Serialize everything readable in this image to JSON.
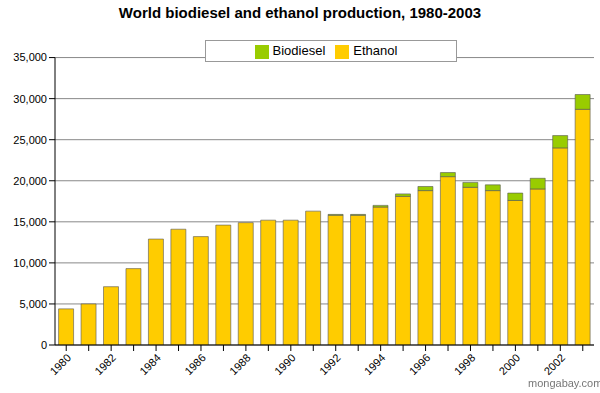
{
  "chart_data": {
    "type": "bar",
    "title": "World biodiesel and ethanol production, 1980-2003",
    "categories": [
      "1980",
      null,
      "1982",
      null,
      "1984",
      null,
      "1986",
      null,
      "1988",
      null,
      "1990",
      null,
      "1992",
      null,
      "1994",
      null,
      "1996",
      null,
      "1998",
      null,
      "2000",
      null,
      "2002",
      null
    ],
    "series": [
      {
        "name": "Ethanol",
        "color": "#ffcc00",
        "values": [
          4400,
          5000,
          7100,
          9300,
          12900,
          14100,
          13200,
          14600,
          14900,
          15200,
          15200,
          16300,
          15800,
          15800,
          16800,
          18100,
          18800,
          20500,
          19200,
          18800,
          17600,
          19000,
          24000,
          28700
        ]
      },
      {
        "name": "Biodiesel",
        "color": "#99cc00",
        "values": [
          0,
          0,
          0,
          0,
          0,
          0,
          0,
          0,
          0,
          0,
          0,
          0,
          100,
          100,
          200,
          300,
          500,
          500,
          600,
          700,
          900,
          1300,
          1500,
          1800
        ]
      }
    ],
    "stacked": true,
    "ylim": [
      0,
      35000
    ],
    "yticks": [
      0,
      {
        "value": 5000,
        "label": "5,000"
      },
      {
        "value": 10000,
        "label": "10,000"
      },
      {
        "value": 15000,
        "label": "15,000"
      },
      {
        "value": 20000,
        "label": "20,000"
      },
      {
        "value": 25000,
        "label": "25,000"
      },
      {
        "value": 30000,
        "label": "30,000"
      },
      {
        "value": 35000,
        "label": "35,000"
      }
    ],
    "grid": true,
    "legend": "top",
    "annotation": "mongabay.com"
  }
}
